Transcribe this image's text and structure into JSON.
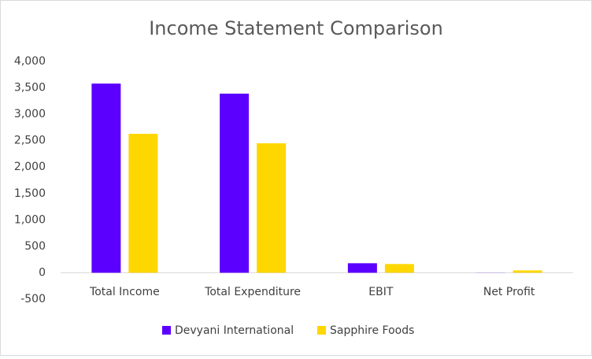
{
  "chart_data": {
    "type": "bar",
    "title": "Income Statement Comparison",
    "categories": [
      "Total Income",
      "Total Expenditure",
      "EBIT",
      "Net Profit"
    ],
    "series": [
      {
        "name": "Devyani International",
        "color": "#5b00ff",
        "values": [
          3580,
          3390,
          180,
          2
        ]
      },
      {
        "name": "Sapphire Foods",
        "color": "#ffd700",
        "values": [
          2630,
          2450,
          165,
          45
        ]
      }
    ],
    "ylim": [
      -500,
      4000
    ],
    "yticks": [
      -500,
      0,
      500,
      {
        "value": 1000,
        "label": "1,000"
      },
      {
        "value": 1500,
        "label": "1,500"
      },
      {
        "value": 2000,
        "label": "2,000"
      },
      {
        "value": 2500,
        "label": "2,500"
      },
      {
        "value": 3000,
        "label": "3,000"
      },
      {
        "value": 3500,
        "label": "3,500"
      },
      {
        "value": 4000,
        "label": "4,000"
      }
    ],
    "grid": false,
    "legend": "bottom"
  }
}
